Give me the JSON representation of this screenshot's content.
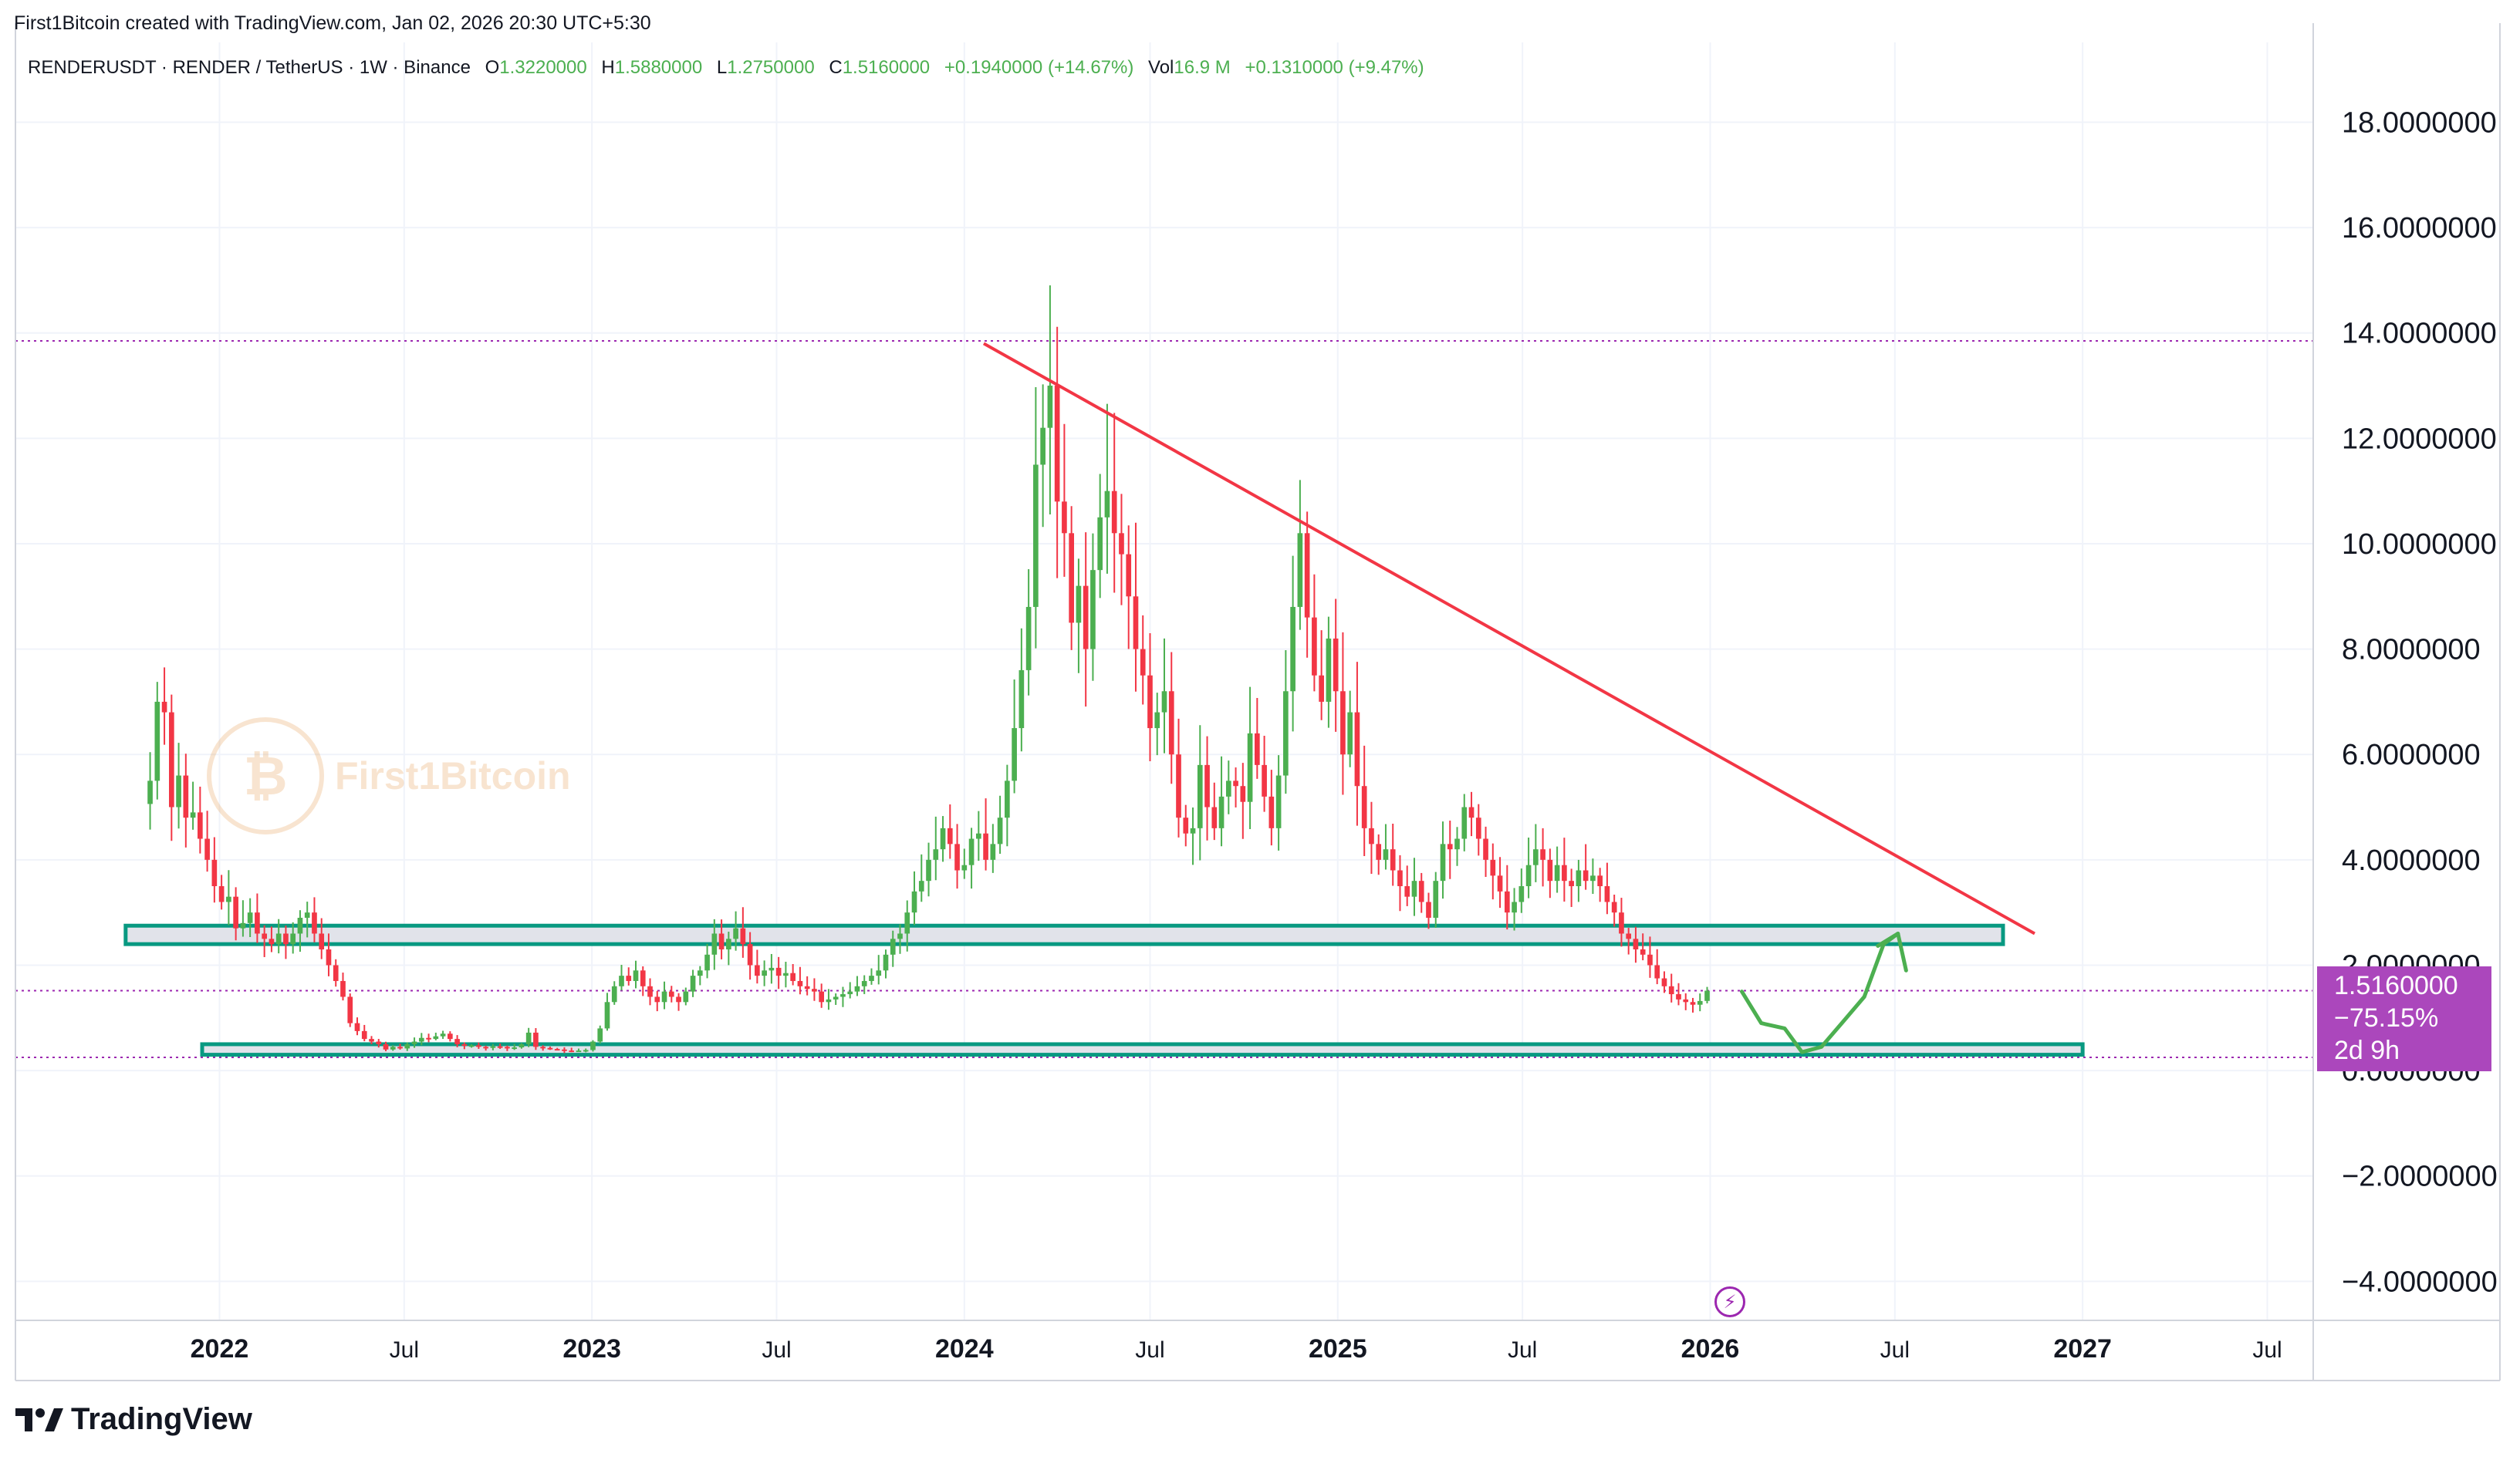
{
  "header": {
    "attribution": "First1Bitcoin created with TradingView.com, Jan 02, 2026 20:30 UTC+5:30"
  },
  "legend": {
    "symbol": "RENDERUSDT · RENDER / TetherUS · 1W · Binance",
    "open_label": "O",
    "open": "1.3220000",
    "high_label": "H",
    "high": "1.5880000",
    "low_label": "L",
    "low": "1.2750000",
    "close_label": "C",
    "close": "1.5160000",
    "change": "+0.1940000 (+14.67%)",
    "vol_label": "Vol",
    "vol": "16.9 M",
    "vol_change": "+0.1310000 (+9.47%)"
  },
  "watermark": {
    "text": "First1Bitcoin"
  },
  "price_tag": {
    "price": "1.5160000",
    "change": "−75.15%",
    "countdown": "2d 9h"
  },
  "brand": {
    "name": "TradingView"
  },
  "colors": {
    "up": "#4caf50",
    "down": "#f23645",
    "trendline": "#f23645",
    "zone_border": "#089981",
    "zone_fill": "#e1e3ea",
    "level_line": "#9c27b0",
    "projection": "#4caf50",
    "price_tag_bg": "#ab47bc"
  },
  "chart_data": {
    "type": "candlestick",
    "title": "RENDERUSDT · RENDER / TetherUS · 1W · Binance",
    "y_ticks": [
      {
        "value": 18,
        "label": "18.0000000"
      },
      {
        "value": 16,
        "label": "16.0000000"
      },
      {
        "value": 14,
        "label": "14.0000000"
      },
      {
        "value": 12,
        "label": "12.0000000"
      },
      {
        "value": 10,
        "label": "10.0000000"
      },
      {
        "value": 8,
        "label": "8.0000000"
      },
      {
        "value": 6,
        "label": "6.0000000"
      },
      {
        "value": 4,
        "label": "4.0000000"
      },
      {
        "value": 2,
        "label": "2.0000000"
      },
      {
        "value": 0,
        "label": "0.0000000"
      },
      {
        "value": -2,
        "label": "−2.0000000"
      },
      {
        "value": -4,
        "label": "−4.0000000"
      }
    ],
    "ylim": [
      -4.8,
      19.5
    ],
    "x_ticks": [
      {
        "date": "2022-01-01",
        "label": "2022",
        "bold": true
      },
      {
        "date": "2022-07-01",
        "label": "Jul",
        "bold": false
      },
      {
        "date": "2023-01-01",
        "label": "2023",
        "bold": true
      },
      {
        "date": "2023-07-01",
        "label": "Jul",
        "bold": false
      },
      {
        "date": "2024-01-01",
        "label": "2024",
        "bold": true
      },
      {
        "date": "2024-07-01",
        "label": "Jul",
        "bold": false
      },
      {
        "date": "2025-01-01",
        "label": "2025",
        "bold": true
      },
      {
        "date": "2025-07-01",
        "label": "Jul",
        "bold": false
      },
      {
        "date": "2026-01-01",
        "label": "2026",
        "bold": true
      },
      {
        "date": "2026-07-01",
        "label": "Jul",
        "bold": false
      },
      {
        "date": "2027-01-01",
        "label": "2027",
        "bold": true
      },
      {
        "date": "2027-07-01",
        "label": "Jul",
        "bold": false
      }
    ],
    "xlim": [
      "2021-06-15",
      "2027-08-15"
    ],
    "grid": true,
    "close_path": [
      [
        "2021-10-25",
        5.5
      ],
      [
        "2021-11-01",
        7.0
      ],
      [
        "2021-11-08",
        6.8
      ],
      [
        "2021-11-15",
        5.0
      ],
      [
        "2021-11-22",
        5.6
      ],
      [
        "2021-11-29",
        4.8
      ],
      [
        "2021-12-06",
        4.9
      ],
      [
        "2021-12-13",
        4.4
      ],
      [
        "2021-12-20",
        4.0
      ],
      [
        "2021-12-27",
        3.5
      ],
      [
        "2022-01-03",
        3.2
      ],
      [
        "2022-01-10",
        3.3
      ],
      [
        "2022-01-17",
        2.7
      ],
      [
        "2022-01-24",
        2.8
      ],
      [
        "2022-01-31",
        3.0
      ],
      [
        "2022-02-07",
        2.6
      ],
      [
        "2022-02-14",
        2.5
      ],
      [
        "2022-02-21",
        2.4
      ],
      [
        "2022-02-28",
        2.6
      ],
      [
        "2022-03-07",
        2.4
      ],
      [
        "2022-03-14",
        2.6
      ],
      [
        "2022-03-21",
        2.9
      ],
      [
        "2022-03-28",
        3.0
      ],
      [
        "2022-04-04",
        2.6
      ],
      [
        "2022-04-11",
        2.3
      ],
      [
        "2022-04-18",
        2.0
      ],
      [
        "2022-04-25",
        1.7
      ],
      [
        "2022-05-02",
        1.4
      ],
      [
        "2022-05-09",
        0.9
      ],
      [
        "2022-05-16",
        0.75
      ],
      [
        "2022-05-23",
        0.6
      ],
      [
        "2022-05-30",
        0.55
      ],
      [
        "2022-06-06",
        0.5
      ],
      [
        "2022-06-13",
        0.4
      ],
      [
        "2022-06-20",
        0.45
      ],
      [
        "2022-06-27",
        0.42
      ],
      [
        "2022-07-04",
        0.5
      ],
      [
        "2022-07-11",
        0.55
      ],
      [
        "2022-07-18",
        0.62
      ],
      [
        "2022-07-25",
        0.6
      ],
      [
        "2022-08-01",
        0.65
      ],
      [
        "2022-08-08",
        0.7
      ],
      [
        "2022-08-15",
        0.6
      ],
      [
        "2022-08-22",
        0.5
      ],
      [
        "2022-08-29",
        0.47
      ],
      [
        "2022-09-05",
        0.48
      ],
      [
        "2022-09-12",
        0.45
      ],
      [
        "2022-09-19",
        0.44
      ],
      [
        "2022-09-26",
        0.46
      ],
      [
        "2022-10-03",
        0.45
      ],
      [
        "2022-10-10",
        0.42
      ],
      [
        "2022-10-17",
        0.44
      ],
      [
        "2022-10-24",
        0.5
      ],
      [
        "2022-10-31",
        0.72
      ],
      [
        "2022-11-07",
        0.45
      ],
      [
        "2022-11-14",
        0.43
      ],
      [
        "2022-11-21",
        0.41
      ],
      [
        "2022-11-28",
        0.4
      ],
      [
        "2022-12-05",
        0.38
      ],
      [
        "2022-12-12",
        0.37
      ],
      [
        "2022-12-19",
        0.38
      ],
      [
        "2022-12-26",
        0.39
      ],
      [
        "2023-01-02",
        0.55
      ],
      [
        "2023-01-09",
        0.8
      ],
      [
        "2023-01-16",
        1.3
      ],
      [
        "2023-01-23",
        1.6
      ],
      [
        "2023-01-30",
        1.8
      ],
      [
        "2023-02-06",
        1.7
      ],
      [
        "2023-02-13",
        1.9
      ],
      [
        "2023-02-20",
        1.6
      ],
      [
        "2023-02-27",
        1.4
      ],
      [
        "2023-03-06",
        1.3
      ],
      [
        "2023-03-13",
        1.5
      ],
      [
        "2023-03-20",
        1.4
      ],
      [
        "2023-03-27",
        1.3
      ],
      [
        "2023-04-03",
        1.5
      ],
      [
        "2023-04-10",
        1.8
      ],
      [
        "2023-04-17",
        1.9
      ],
      [
        "2023-04-24",
        2.2
      ],
      [
        "2023-05-01",
        2.6
      ],
      [
        "2023-05-08",
        2.3
      ],
      [
        "2023-05-15",
        2.5
      ],
      [
        "2023-05-22",
        2.7
      ],
      [
        "2023-05-29",
        2.4
      ],
      [
        "2023-06-05",
        2.0
      ],
      [
        "2023-06-12",
        1.8
      ],
      [
        "2023-06-19",
        1.9
      ],
      [
        "2023-06-26",
        1.95
      ],
      [
        "2023-07-03",
        1.8
      ],
      [
        "2023-07-10",
        1.85
      ],
      [
        "2023-07-17",
        1.7
      ],
      [
        "2023-07-24",
        1.6
      ],
      [
        "2023-07-31",
        1.55
      ],
      [
        "2023-08-07",
        1.5
      ],
      [
        "2023-08-14",
        1.3
      ],
      [
        "2023-08-21",
        1.35
      ],
      [
        "2023-08-28",
        1.4
      ],
      [
        "2023-09-04",
        1.45
      ],
      [
        "2023-09-11",
        1.5
      ],
      [
        "2023-09-18",
        1.6
      ],
      [
        "2023-09-25",
        1.7
      ],
      [
        "2023-10-02",
        1.8
      ],
      [
        "2023-10-09",
        1.9
      ],
      [
        "2023-10-16",
        2.2
      ],
      [
        "2023-10-23",
        2.5
      ],
      [
        "2023-10-30",
        2.6
      ],
      [
        "2023-11-06",
        3.0
      ],
      [
        "2023-11-13",
        3.4
      ],
      [
        "2023-11-20",
        3.6
      ],
      [
        "2023-11-27",
        4.0
      ],
      [
        "2023-12-04",
        4.2
      ],
      [
        "2023-12-11",
        4.6
      ],
      [
        "2023-12-18",
        4.3
      ],
      [
        "2023-12-25",
        3.8
      ],
      [
        "2024-01-01",
        3.9
      ],
      [
        "2024-01-08",
        4.4
      ],
      [
        "2024-01-15",
        4.5
      ],
      [
        "2024-01-22",
        4.0
      ],
      [
        "2024-01-29",
        4.3
      ],
      [
        "2024-02-05",
        4.8
      ],
      [
        "2024-02-12",
        5.5
      ],
      [
        "2024-02-19",
        6.5
      ],
      [
        "2024-02-26",
        7.6
      ],
      [
        "2024-03-04",
        8.8
      ],
      [
        "2024-03-11",
        11.5
      ],
      [
        "2024-03-18",
        12.2
      ],
      [
        "2024-03-25",
        13.0
      ],
      [
        "2024-04-01",
        10.8
      ],
      [
        "2024-04-08",
        10.2
      ],
      [
        "2024-04-15",
        8.5
      ],
      [
        "2024-04-22",
        9.2
      ],
      [
        "2024-04-29",
        8.0
      ],
      [
        "2024-05-06",
        9.5
      ],
      [
        "2024-05-13",
        10.5
      ],
      [
        "2024-05-20",
        11.0
      ],
      [
        "2024-05-27",
        10.2
      ],
      [
        "2024-06-03",
        9.8
      ],
      [
        "2024-06-10",
        9.0
      ],
      [
        "2024-06-17",
        8.0
      ],
      [
        "2024-06-24",
        7.5
      ],
      [
        "2024-07-01",
        6.5
      ],
      [
        "2024-07-08",
        6.8
      ],
      [
        "2024-07-15",
        7.2
      ],
      [
        "2024-07-22",
        6.0
      ],
      [
        "2024-07-29",
        4.8
      ],
      [
        "2024-08-05",
        4.5
      ],
      [
        "2024-08-12",
        4.6
      ],
      [
        "2024-08-19",
        5.8
      ],
      [
        "2024-08-26",
        5.0
      ],
      [
        "2024-09-02",
        4.6
      ],
      [
        "2024-09-09",
        5.2
      ],
      [
        "2024-09-16",
        5.5
      ],
      [
        "2024-09-23",
        5.4
      ],
      [
        "2024-09-30",
        5.1
      ],
      [
        "2024-10-07",
        6.4
      ],
      [
        "2024-10-14",
        5.8
      ],
      [
        "2024-10-21",
        5.2
      ],
      [
        "2024-10-28",
        4.6
      ],
      [
        "2024-11-04",
        5.6
      ],
      [
        "2024-11-11",
        7.2
      ],
      [
        "2024-11-18",
        8.8
      ],
      [
        "2024-11-25",
        10.2
      ],
      [
        "2024-12-02",
        8.6
      ],
      [
        "2024-12-09",
        7.5
      ],
      [
        "2024-12-16",
        7.0
      ],
      [
        "2024-12-23",
        8.2
      ],
      [
        "2024-12-30",
        7.2
      ],
      [
        "2025-01-06",
        6.0
      ],
      [
        "2025-01-13",
        6.8
      ],
      [
        "2025-01-20",
        5.4
      ],
      [
        "2025-01-27",
        4.6
      ],
      [
        "2025-02-03",
        4.3
      ],
      [
        "2025-02-10",
        4.0
      ],
      [
        "2025-02-17",
        4.2
      ],
      [
        "2025-02-24",
        3.8
      ],
      [
        "2025-03-03",
        3.5
      ],
      [
        "2025-03-10",
        3.3
      ],
      [
        "2025-03-17",
        3.6
      ],
      [
        "2025-03-24",
        3.2
      ],
      [
        "2025-03-31",
        2.9
      ],
      [
        "2025-04-07",
        3.6
      ],
      [
        "2025-04-14",
        4.3
      ],
      [
        "2025-04-21",
        4.2
      ],
      [
        "2025-04-28",
        4.4
      ],
      [
        "2025-05-05",
        5.0
      ],
      [
        "2025-05-12",
        4.8
      ],
      [
        "2025-05-19",
        4.4
      ],
      [
        "2025-05-26",
        4.0
      ],
      [
        "2025-06-02",
        3.7
      ],
      [
        "2025-06-09",
        3.4
      ],
      [
        "2025-06-16",
        3.0
      ],
      [
        "2025-06-23",
        3.2
      ],
      [
        "2025-06-30",
        3.5
      ],
      [
        "2025-07-07",
        3.9
      ],
      [
        "2025-07-14",
        4.2
      ],
      [
        "2025-07-21",
        4.0
      ],
      [
        "2025-07-28",
        3.6
      ],
      [
        "2025-08-04",
        3.9
      ],
      [
        "2025-08-11",
        3.6
      ],
      [
        "2025-08-18",
        3.5
      ],
      [
        "2025-08-25",
        3.8
      ],
      [
        "2025-09-01",
        3.6
      ],
      [
        "2025-09-08",
        3.7
      ],
      [
        "2025-09-15",
        3.5
      ],
      [
        "2025-09-22",
        3.2
      ],
      [
        "2025-09-29",
        3.0
      ],
      [
        "2025-10-06",
        2.6
      ],
      [
        "2025-10-13",
        2.5
      ],
      [
        "2025-10-20",
        2.3
      ],
      [
        "2025-10-27",
        2.2
      ],
      [
        "2025-11-03",
        2.0
      ],
      [
        "2025-11-10",
        1.75
      ],
      [
        "2025-11-17",
        1.6
      ],
      [
        "2025-11-24",
        1.45
      ],
      [
        "2025-12-01",
        1.35
      ],
      [
        "2025-12-08",
        1.3
      ],
      [
        "2025-12-15",
        1.25
      ],
      [
        "2025-12-22",
        1.32
      ],
      [
        "2025-12-29",
        1.516
      ]
    ],
    "last": {
      "open": 1.322,
      "high": 1.588,
      "low": 1.275,
      "close": 1.516
    },
    "annotations": {
      "resistance_level": 13.85,
      "current_price_level": 1.516,
      "support_level": 0.25,
      "upper_zone": {
        "from": "2021-10-01",
        "to": "2026-10-15",
        "low": 2.4,
        "high": 2.75
      },
      "lower_zone": {
        "from": "2021-12-15",
        "to": "2027-01-01",
        "low": 0.3,
        "high": 0.5
      },
      "trendline": [
        [
          "2024-01-20",
          13.8
        ],
        [
          "2026-11-15",
          2.6
        ]
      ],
      "projection_path": [
        [
          "2026-02-01",
          1.5
        ],
        [
          "2026-02-20",
          0.9
        ],
        [
          "2026-03-15",
          0.8
        ],
        [
          "2026-04-01",
          0.35
        ],
        [
          "2026-04-20",
          0.45
        ],
        [
          "2026-05-10",
          0.9
        ],
        [
          "2026-06-01",
          1.4
        ],
        [
          "2026-06-20",
          2.4
        ],
        [
          "2026-07-04",
          2.6
        ],
        [
          "2026-07-12",
          1.9
        ]
      ]
    }
  }
}
